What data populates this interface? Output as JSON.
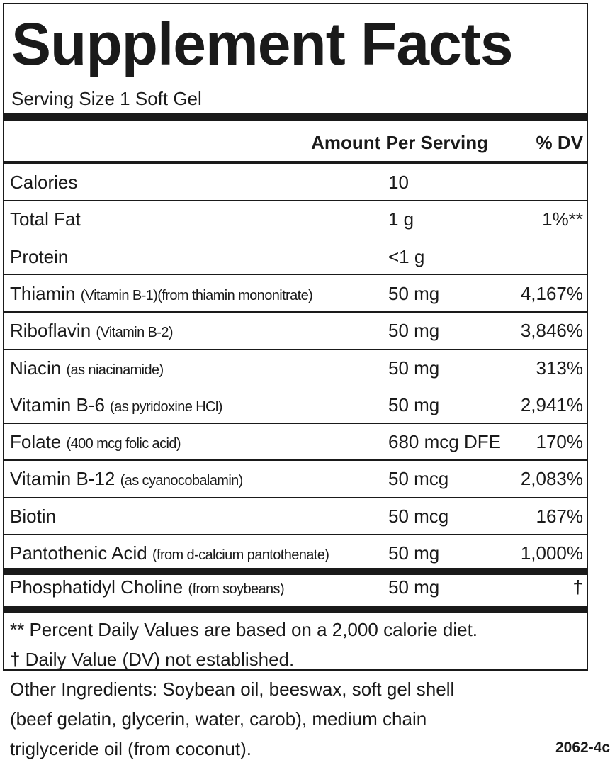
{
  "title": "Supplement Facts",
  "serving": "Serving Size 1 Soft Gel",
  "header": {
    "amount": "Amount Per Serving",
    "dv": "% DV"
  },
  "rows": [
    {
      "name": "Calories",
      "amount": "10"
    },
    {
      "name": "Total Fat",
      "amount": "1 g",
      "dv": "1%**"
    },
    {
      "name": "Protein",
      "amount": "<1 g"
    },
    {
      "name": "Thiamin",
      "note": "(Vitamin B-1)(from thiamin mononitrate)",
      "amount": "50 mg",
      "dv": "4,167%"
    },
    {
      "name": "Riboflavin",
      "note": "(Vitamin B-2)",
      "amount": "50 mg",
      "dv": "3,846%"
    },
    {
      "name": "Niacin",
      "note": "(as niacinamide)",
      "amount": "50 mg",
      "dv": "313%"
    },
    {
      "name": "Vitamin B-6",
      "note": "(as pyridoxine HCl)",
      "amount": "50 mg",
      "dv": "2,941%"
    },
    {
      "name": "Folate",
      "note": "(400 mcg folic acid)",
      "amount": "680 mcg DFE",
      "dv": "170%"
    },
    {
      "name": "Vitamin B-12",
      "note": "(as cyanocobalamin)",
      "amount": "50 mcg",
      "dv": "2,083%"
    },
    {
      "name": "Biotin",
      "amount": "50 mcg",
      "dv": "167%"
    },
    {
      "name": "Pantothenic Acid",
      "note": "(from d-calcium pantothenate)",
      "amount": "50 mg",
      "dv": "1,000%"
    }
  ],
  "other_rows": [
    {
      "name": "Phosphatidyl Choline",
      "note": "(from soybeans)",
      "amount": "50 mg",
      "dv": "†"
    }
  ],
  "footnotes": [
    "** Percent Daily Values are based on a 2,000 calorie diet.",
    "† Daily Value (DV) not established."
  ],
  "other_ingredients": [
    "Other Ingredients:  Soybean oil, beeswax, soft gel shell",
    "(beef gelatin, glycerin, water, carob), medium chain",
    "triglyceride oil (from coconut)."
  ],
  "code": "2062-4c"
}
